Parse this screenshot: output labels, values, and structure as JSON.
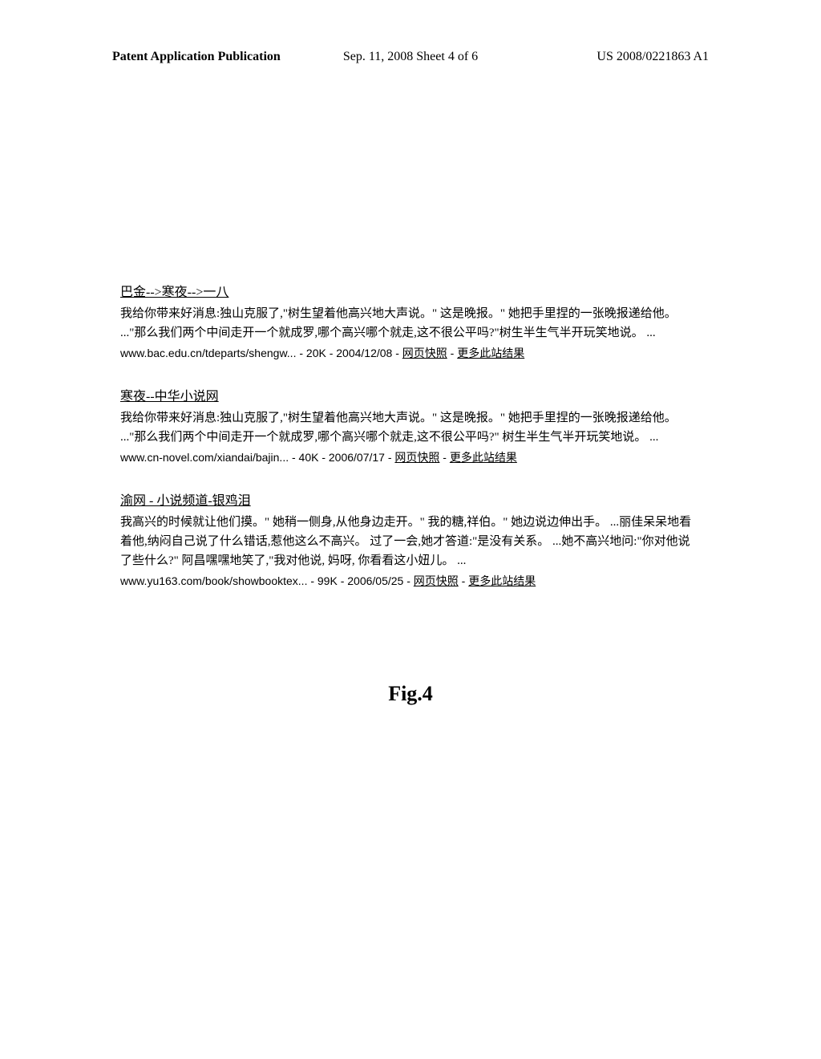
{
  "header": {
    "left": "Patent Application Publication",
    "center": "Sep. 11, 2008   Sheet 4 of 6",
    "right": "US 2008/0221863 A1"
  },
  "results": [
    {
      "title": "巴金-->寒夜-->一八",
      "snippet": "我给你带来好消息:独山克服了,\"树生望着他高兴地大声说。\" 这是晚报。\" 她把手里捏的一张晚报递给他。 ...\"那么我们两个中间走开一个就成罗,哪个高兴哪个就走,这不很公平吗?\"树生半生气半开玩笑地说。 ...",
      "url_prefix": "www.bac.edu.cn/tdeparts/shengw... - 20K - 2004/12/08 - ",
      "url_cached": "网页快照",
      "url_sep": " - ",
      "url_more": "更多此站结果"
    },
    {
      "title": "寒夜--中华小说网",
      "snippet": "我给你带来好消息:独山克服了,\"树生望着他高兴地大声说。\" 这是晚报。\" 她把手里捏的一张晚报递给他。 ...\"那么我们两个中间走开一个就成罗,哪个高兴哪个就走,这不很公平吗?\" 树生半生气半开玩笑地说。 ...",
      "url_prefix": "www.cn-novel.com/xiandai/bajin... - 40K - 2006/07/17 - ",
      "url_cached": "网页快照",
      "url_sep": " - ",
      "url_more": "更多此站结果"
    },
    {
      "title": "渝网  - 小说频道-银鸡泪",
      "snippet": "我高兴的时候就让他们摸。\" 她稍一侧身,从他身边走开。\" 我的糖,祥伯。\" 她边说边伸出手。 ...丽佳呆呆地看着他,纳闷自己说了什么错话,惹他这么不高兴。  过了一会,她才答道:\"是没有关系。 ...她不高兴地问:\"你对他说了些什么?\" 阿昌嘿嘿地笑了,\"我对他说, 妈呀, 你看看这小妞儿。 ...",
      "url_prefix": "www.yu163.com/book/showbooktex... - 99K - 2006/05/25 - ",
      "url_cached": "网页快照",
      "url_sep": " - ",
      "url_more": "更多此站结果"
    }
  ],
  "figure_label": "Fig.4"
}
